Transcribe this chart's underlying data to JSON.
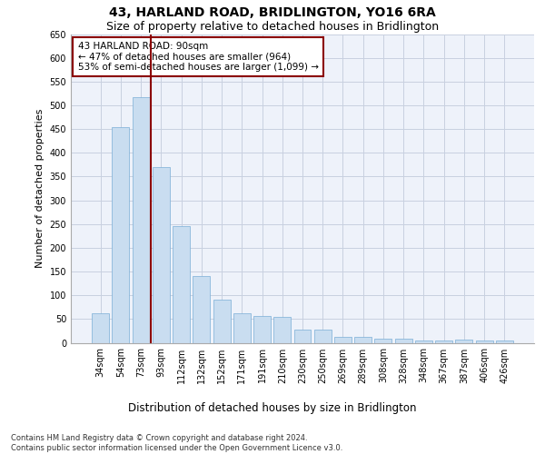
{
  "title": "43, HARLAND ROAD, BRIDLINGTON, YO16 6RA",
  "subtitle": "Size of property relative to detached houses in Bridlington",
  "xlabel": "Distribution of detached houses by size in Bridlington",
  "ylabel": "Number of detached properties",
  "bar_color": "#c9ddf0",
  "bar_edge_color": "#7aaed6",
  "grid_color": "#c8d0e0",
  "bg_color": "#eef2fa",
  "categories": [
    "34sqm",
    "54sqm",
    "73sqm",
    "93sqm",
    "112sqm",
    "132sqm",
    "152sqm",
    "171sqm",
    "191sqm",
    "210sqm",
    "230sqm",
    "250sqm",
    "269sqm",
    "289sqm",
    "308sqm",
    "328sqm",
    "348sqm",
    "367sqm",
    "387sqm",
    "406sqm",
    "426sqm"
  ],
  "values": [
    62,
    455,
    518,
    370,
    245,
    140,
    90,
    63,
    56,
    54,
    27,
    27,
    12,
    12,
    8,
    8,
    5,
    5,
    7,
    4,
    4
  ],
  "vline_x_index": 3,
  "vline_color": "#8b0000",
  "annotation_text": "43 HARLAND ROAD: 90sqm\n← 47% of detached houses are smaller (964)\n53% of semi-detached houses are larger (1,099) →",
  "annotation_box_color": "#8b0000",
  "annotation_fill": "#ffffff",
  "ylim": [
    0,
    650
  ],
  "yticks": [
    0,
    50,
    100,
    150,
    200,
    250,
    300,
    350,
    400,
    450,
    500,
    550,
    600,
    650
  ],
  "footnote": "Contains HM Land Registry data © Crown copyright and database right 2024.\nContains public sector information licensed under the Open Government Licence v3.0.",
  "title_fontsize": 10,
  "subtitle_fontsize": 9,
  "xlabel_fontsize": 8.5,
  "ylabel_fontsize": 8,
  "tick_fontsize": 7,
  "annotation_fontsize": 7.5,
  "footnote_fontsize": 6
}
